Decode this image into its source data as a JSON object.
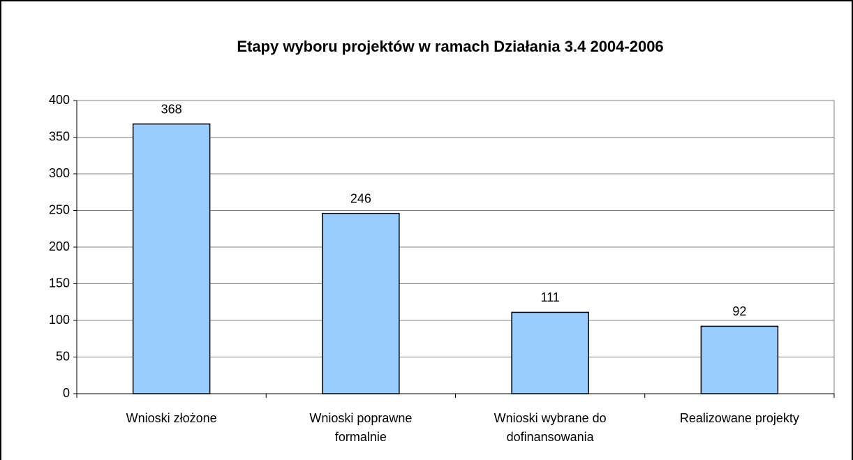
{
  "chart_data": {
    "type": "bar",
    "title": "Etapy wyboru projektów w ramach Działania 3.4  2004-2006",
    "categories": [
      "Wnioski złożone",
      "Wnioski poprawne formalnie",
      "Wnioski wybrane do dofinansowania",
      "Realizowane projekty"
    ],
    "values": [
      368,
      246,
      111,
      92
    ],
    "color": "#99ccff",
    "ylim": [
      0,
      400
    ],
    "yticks": [
      0,
      50,
      100,
      150,
      200,
      250,
      300,
      350,
      400
    ],
    "grid": true
  }
}
